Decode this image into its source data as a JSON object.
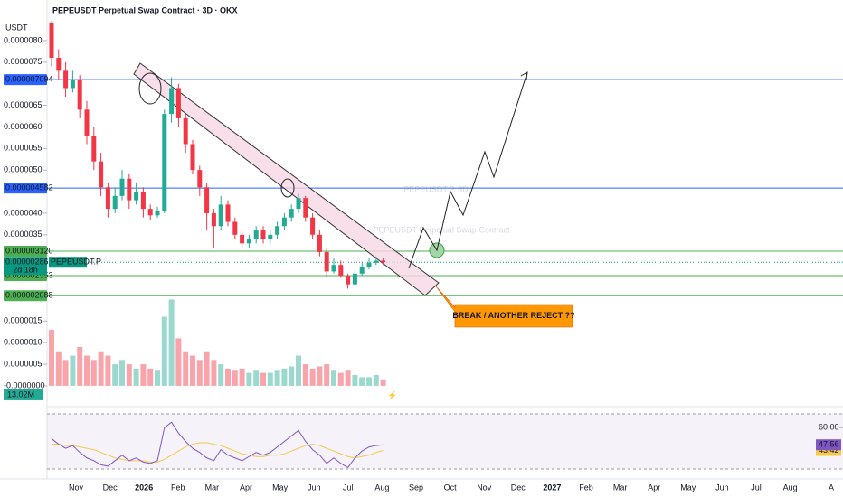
{
  "chart_data": {
    "type": "candlestick",
    "title": "PEPEUSDT Perpetual Swap Contract · 3D · OKX",
    "currency": "USDT",
    "watermark": "PEPEUSDT.P, 3D",
    "watermark_subtitle": "PEPEUSDT Perpetual Swap Contract",
    "annotation": "BREAK / ANOTHER REJECT ??",
    "up_color": "#22ab94",
    "down_color": "#f23645",
    "ylim": [
      -4.2e-07,
      8.48e-06
    ],
    "yticks": [
      {
        "value": 8e-06,
        "label": "0.0000080"
      },
      {
        "value": 7.5e-06,
        "label": "0.0000075"
      },
      {
        "value": 6.5e-06,
        "label": "0.0000065"
      },
      {
        "value": 6e-06,
        "label": "0.0000060"
      },
      {
        "value": 5.5e-06,
        "label": "0.0000055"
      },
      {
        "value": 5e-06,
        "label": "0.0000050"
      },
      {
        "value": 4e-06,
        "label": "0.0000040"
      },
      {
        "value": 3.5e-06,
        "label": "0.0000035"
      },
      {
        "value": 1.5e-06,
        "label": "0.0000015"
      },
      {
        "value": 1e-06,
        "label": "0.0000010"
      },
      {
        "value": 5e-07,
        "label": "0.0000005"
      },
      {
        "value": 0,
        "label": "-0.0000000"
      }
    ],
    "grid": false,
    "x_labels": [
      "Nov",
      "Dec",
      "2026",
      "Feb",
      "Mar",
      "Apr",
      "May",
      "Jun",
      "Jul",
      "Aug",
      "Sep",
      "Oct",
      "Nov",
      "Dec",
      "2027",
      "Feb",
      "Mar",
      "Apr",
      "May",
      "Jun",
      "Jul",
      "Aug"
    ],
    "candles": [
      [
        8.4e-06,
        8.45e-06,
        7.4e-06,
        7.6e-06
      ],
      [
        7.6e-06,
        7.8e-06,
        7.1e-06,
        7.3e-06
      ],
      [
        7.3e-06,
        7.5e-06,
        6.7e-06,
        6.9e-06
      ],
      [
        6.9e-06,
        7.3e-06,
        6.8e-06,
        7.1e-06
      ],
      [
        7.1e-06,
        7.2e-06,
        6.2e-06,
        6.4e-06
      ],
      [
        6.4e-06,
        6.6e-06,
        5.6e-06,
        5.8e-06
      ],
      [
        5.8e-06,
        6e-06,
        5e-06,
        5.2e-06
      ],
      [
        5.2e-06,
        5.4e-06,
        4.4e-06,
        4.6e-06
      ],
      [
        4.6e-06,
        4.7e-06,
        3.9e-06,
        4.1e-06
      ],
      [
        4.1e-06,
        4.6e-06,
        4e-06,
        4.4e-06
      ],
      [
        4.4e-06,
        5e-06,
        4.3e-06,
        4.8e-06
      ],
      [
        4.8e-06,
        4.9e-06,
        4.1e-06,
        4.3e-06
      ],
      [
        4.3e-06,
        4.7e-06,
        4.2e-06,
        4.5e-06
      ],
      [
        4.5e-06,
        4.6e-06,
        3.9e-06,
        4.1e-06
      ],
      [
        4.1e-06,
        4.2e-06,
        3.85e-06,
        3.95e-06
      ],
      [
        3.95e-06,
        4.15e-06,
        3.9e-06,
        4.05e-06
      ],
      [
        4.05e-06,
        6.4e-06,
        4e-06,
        6.3e-06
      ],
      [
        6.3e-06,
        7.15e-06,
        6.1e-06,
        6.9e-06
      ],
      [
        6.9e-06,
        7e-06,
        6e-06,
        6.2e-06
      ],
      [
        6.2e-06,
        6.3e-06,
        5.4e-06,
        5.6e-06
      ],
      [
        5.6e-06,
        5.7e-06,
        4.9e-06,
        5e-06
      ],
      [
        5e-06,
        5.1e-06,
        4.4e-06,
        4.6e-06
      ],
      [
        4.6e-06,
        4.7e-06,
        3.6e-06,
        4e-06
      ],
      [
        4e-06,
        4.1e-06,
        3.2e-06,
        3.7e-06
      ],
      [
        3.7e-06,
        4.4e-06,
        3.6e-06,
        4.2e-06
      ],
      [
        4.2e-06,
        4.3e-06,
        3.7e-06,
        3.8e-06
      ],
      [
        3.8e-06,
        3.9e-06,
        3.4e-06,
        3.5e-06
      ],
      [
        3.5e-06,
        3.6e-06,
        3.2e-06,
        3.3e-06
      ],
      [
        3.3e-06,
        3.5e-06,
        3.2e-06,
        3.4e-06
      ],
      [
        3.4e-06,
        3.7e-06,
        3.3e-06,
        3.6e-06
      ],
      [
        3.6e-06,
        3.7e-06,
        3.3e-06,
        3.4e-06
      ],
      [
        3.4e-06,
        3.6e-06,
        3.3e-06,
        3.5e-06
      ],
      [
        3.5e-06,
        3.8e-06,
        3.4e-06,
        3.7e-06
      ],
      [
        3.7e-06,
        4e-06,
        3.6e-06,
        3.9e-06
      ],
      [
        3.9e-06,
        4.2e-06,
        3.8e-06,
        4.1e-06
      ],
      [
        4.1e-06,
        4.45e-06,
        4e-06,
        4.35e-06
      ],
      [
        4.35e-06,
        4.4e-06,
        3.8e-06,
        3.9e-06
      ],
      [
        3.9e-06,
        4e-06,
        3.4e-06,
        3.5e-06
      ],
      [
        3.5e-06,
        3.6e-06,
        3e-06,
        3.1e-06
      ],
      [
        3.1e-06,
        3.2e-06,
        2.5e-06,
        2.65e-06
      ],
      [
        2.65e-06,
        2.95e-06,
        2.6e-06,
        2.8e-06
      ],
      [
        2.8e-06,
        2.9e-06,
        2.5e-06,
        2.55e-06
      ],
      [
        2.55e-06,
        2.6e-06,
        2.25e-06,
        2.35e-06
      ],
      [
        2.35e-06,
        2.7e-06,
        2.3e-06,
        2.6e-06
      ],
      [
        2.6e-06,
        2.85e-06,
        2.55e-06,
        2.75e-06
      ],
      [
        2.75e-06,
        2.95e-06,
        2.7e-06,
        2.85e-06
      ],
      [
        2.85e-06,
        3e-06,
        2.8e-06,
        2.9e-06
      ],
      [
        2.9e-06,
        2.95e-06,
        2.8e-06,
        2.863e-06
      ]
    ],
    "levels": [
      {
        "value": 7.094e-06,
        "label": "0.000007094",
        "color": "#2962ff"
      },
      {
        "value": 4.582e-06,
        "label": "0.000004582",
        "color": "#2962ff"
      },
      {
        "value": 3.12e-06,
        "label": "0.000003120",
        "color": "#4caf50"
      },
      {
        "value": 2.553e-06,
        "label": "0.000002553",
        "color": "#4caf50"
      },
      {
        "value": 2.088e-06,
        "label": "0.000002088",
        "color": "#4caf50"
      }
    ],
    "current_price": {
      "value": 2.863e-06,
      "label": "0.000002863",
      "symbol": "PEPEUSDT.P",
      "countdown": "2d 18h",
      "color": "#089981"
    },
    "volume": {
      "values": [
        1.3e-06,
        8e-07,
        6e-07,
        7e-07,
        9e-07,
        7e-07,
        6e-07,
        8e-07,
        7e-07,
        5e-07,
        6e-07,
        5e-07,
        4e-07,
        5e-07,
        4e-07,
        3.5e-07,
        1.6e-06,
        2e-06,
        1.1e-06,
        8e-07,
        7e-07,
        6e-07,
        8e-07,
        6e-07,
        5e-07,
        4e-07,
        3.5e-07,
        4e-07,
        3e-07,
        3.5e-07,
        3e-07,
        3e-07,
        3.5e-07,
        4e-07,
        4.5e-07,
        7e-07,
        5e-07,
        4e-07,
        4.5e-07,
        5e-07,
        3.5e-07,
        3e-07,
        3.5e-07,
        2.5e-07,
        2e-07,
        2e-07,
        2.5e-07,
        1.5e-07
      ],
      "current_label": "13.02M"
    },
    "rsi": {
      "ylim": [
        28,
        72
      ],
      "band": [
        30,
        70
      ],
      "yticks": [
        {
          "value": 60,
          "label": "60.00"
        }
      ],
      "color": "#7e57c2",
      "ma_color": "#f7c948",
      "values": [
        52,
        48,
        45,
        47,
        42,
        38,
        36,
        33,
        32,
        36,
        40,
        36,
        38,
        35,
        34,
        36,
        60,
        64,
        56,
        50,
        45,
        42,
        38,
        36,
        44,
        40,
        38,
        36,
        39,
        42,
        40,
        42,
        46,
        50,
        54,
        58,
        50,
        44,
        40,
        34,
        38,
        34,
        31,
        38,
        43,
        46,
        47,
        47.56
      ],
      "ma": [
        48,
        48,
        47,
        47,
        46,
        45,
        44,
        42,
        40,
        38,
        37,
        36,
        36,
        36,
        35,
        35,
        37,
        40,
        43,
        46,
        48,
        49,
        49,
        48,
        47,
        45,
        43,
        41,
        40,
        39,
        39,
        40,
        40,
        41,
        43,
        45,
        47,
        48,
        47,
        45,
        43,
        41,
        39,
        38,
        39,
        40,
        42,
        43.42
      ]
    }
  }
}
